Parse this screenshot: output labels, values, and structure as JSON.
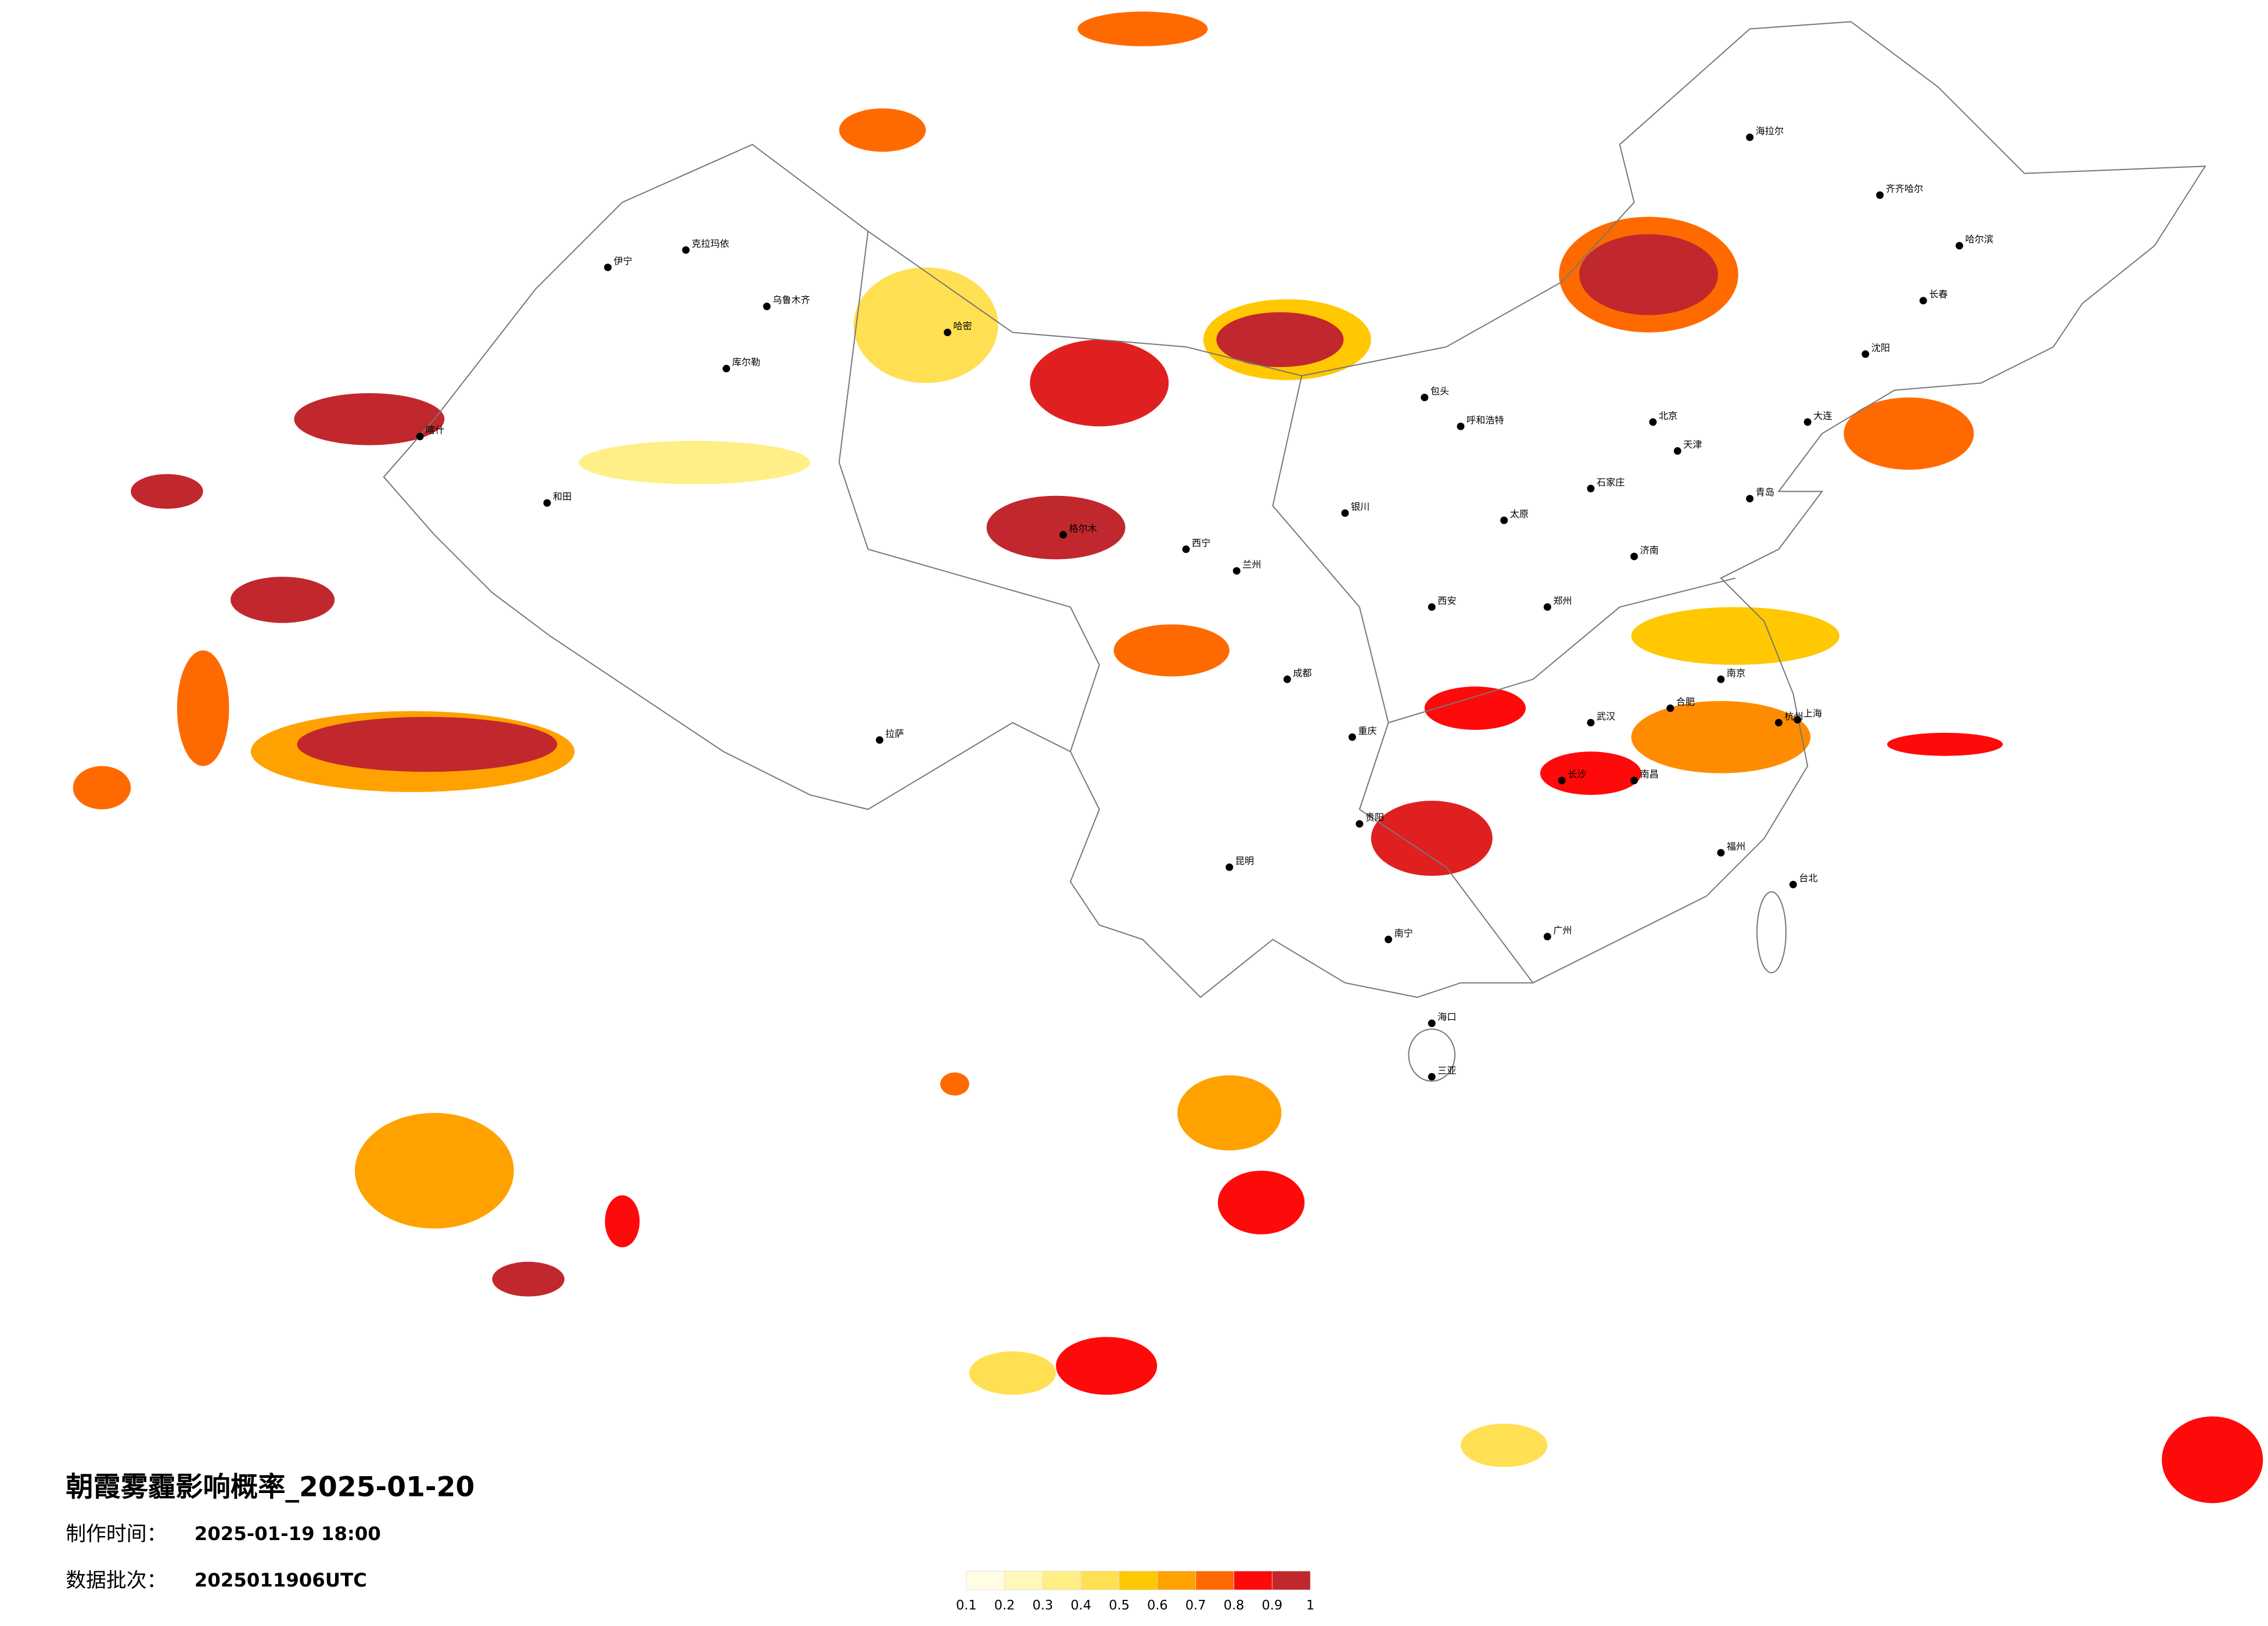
{
  "title": "朝霞雾霾影响概率_2025-01-20",
  "info": [
    {
      "label": "制作时间：",
      "value": "2025-01-19 18:00"
    },
    {
      "label": "数据批次：",
      "value": "2025011906UTC"
    }
  ],
  "legend": {
    "ticks": [
      0.1,
      0.2,
      0.3,
      0.4,
      0.5,
      0.6,
      0.7,
      0.8,
      0.9,
      1
    ],
    "colors": [
      "#fffde2",
      "#fff8b8",
      "#ffef86",
      "#ffe052",
      "#ffc800",
      "#ffa200",
      "#ff6a00",
      "#ff0a0a",
      "#c0282d"
    ]
  },
  "cities": [
    "北京",
    "天津",
    "上海",
    "广州",
    "重庆",
    "成都",
    "武汉",
    "乌鲁木齐",
    "拉萨",
    "西宁",
    "兰州",
    "西安",
    "郑州",
    "济南",
    "南京",
    "杭州",
    "长沙",
    "南昌",
    "福州",
    "贵阳",
    "昆明",
    "南宁",
    "海口",
    "哈尔滨",
    "长春",
    "沈阳",
    "呼和浩特",
    "太原",
    "石家庄",
    "银川",
    "合肥",
    "喀什",
    "和田",
    "伊宁",
    "克拉玛依",
    "库尔勒",
    "哈密",
    "格尔木",
    "大连",
    "青岛",
    "台北",
    "三亚",
    "海拉尔",
    "齐齐哈尔",
    "包头"
  ]
}
